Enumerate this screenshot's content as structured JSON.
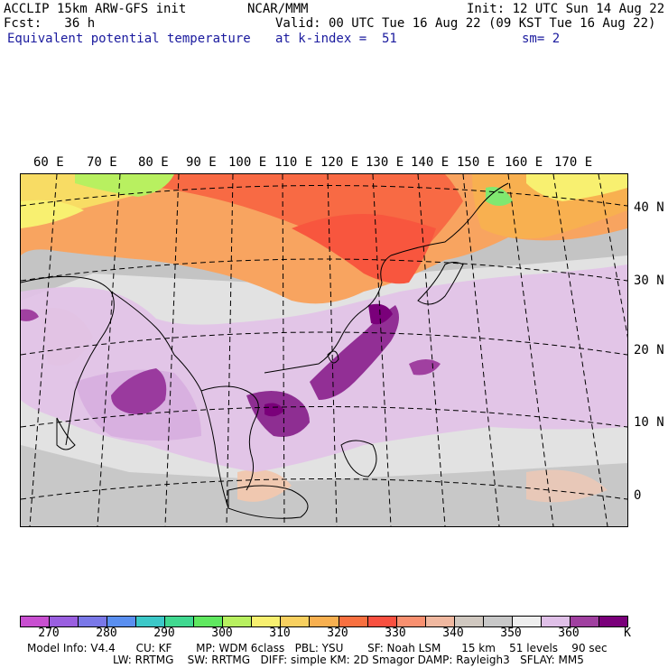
{
  "header": {
    "model": "ACCLIP 15km ARW-GFS init",
    "forecast": "Fcst:   36 h",
    "field": "Equivalent potential temperature",
    "org": "NCAR/MMM",
    "init": "Init: 12 UTC Sun 14 Aug 22",
    "valid": "Valid: 00 UTC Tue 16 Aug 22 (09 KST Tue 16 Aug 22)",
    "level": "at k-index =  51",
    "smooth": "sm= 2"
  },
  "map": {
    "lon_labels": [
      "60 E",
      "70 E",
      "80 E",
      "90 E",
      "100 E",
      "110 E",
      "120 E",
      "130 E",
      "140 E",
      "150 E",
      "160 E",
      "170 E"
    ],
    "lat_labels": [
      "40 N",
      "30 N",
      "20 N",
      "10 N",
      "0"
    ]
  },
  "colorbar": {
    "unit": "K",
    "tick_labels": [
      "270",
      "280",
      "290",
      "300",
      "310",
      "320",
      "330",
      "340",
      "350",
      "360"
    ],
    "colors": [
      "#c84fd0",
      "#9a5fe0",
      "#7a78e8",
      "#5a8ff0",
      "#3cc8c8",
      "#40d890",
      "#60e860",
      "#b8f060",
      "#f8f070",
      "#f8d060",
      "#f8b050",
      "#f87040",
      "#f85040",
      "#f89070",
      "#f0b8a0",
      "#d0c8c0",
      "#c8c8c8",
      "#eeeeee",
      "#e0c0e8",
      "#a040a0",
      "#7a007a"
    ]
  },
  "footer": {
    "line1": "Model Info: V4.4      CU: KF       MP: WDM 6class   PBL: YSU       SF: Noah LSM      15 km    51 levels    90 sec",
    "line2": "LW: RRTMG    SW: RRTMG   DIFF: simple KM: 2D Smagor DAMP: Rayleigh3   SFLAY: MM5"
  }
}
